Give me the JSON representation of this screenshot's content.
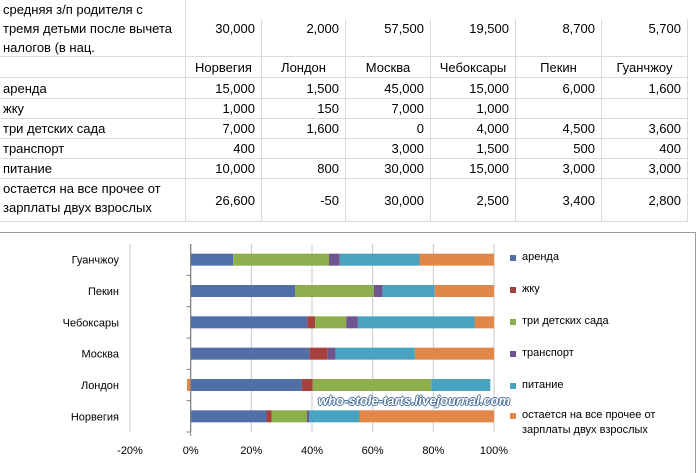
{
  "table": {
    "salary_label": "средняя з/п родителя с тремя детьми после вычета налогов (в нац.",
    "salaries": [
      "30,000",
      "2,000",
      "57,500",
      "19,500",
      "8,700",
      "5,700"
    ],
    "cities": [
      "Норвегия",
      "Лондон",
      "Москва",
      "Чебоксары",
      "Пекин",
      "Гуанчжоу"
    ],
    "rows": [
      {
        "label": "аренда",
        "values": [
          "15,000",
          "1,500",
          "45,000",
          "15,000",
          "6,000",
          "1,600"
        ]
      },
      {
        "label": "жку",
        "values": [
          "1,000",
          "150",
          "7,000",
          "1,000",
          "",
          ""
        ]
      },
      {
        "label": "три детских сада",
        "values": [
          "7,000",
          "1,600",
          "0",
          "4,000",
          "4,500",
          "3,600"
        ]
      },
      {
        "label": "транспорт",
        "values": [
          "400",
          "",
          "3,000",
          "1,500",
          "500",
          "400"
        ]
      },
      {
        "label": "питание",
        "values": [
          "10,000",
          "800",
          "30,000",
          "15,000",
          "3,000",
          "3,000"
        ]
      },
      {
        "label": "остается на все прочее от зарплаты двух взрослых",
        "values": [
          "26,600",
          "-50",
          "30,000",
          "2,500",
          "3,400",
          "2,800"
        ]
      }
    ]
  },
  "chart_data": {
    "type": "bar",
    "orientation": "horizontal",
    "stacked": "percent",
    "categories": [
      "Норвегия",
      "Лондон",
      "Москва",
      "Чебоксары",
      "Пекин",
      "Гуанчжоу"
    ],
    "series": [
      {
        "name": "аренда",
        "color": "#4F6FA6",
        "values": [
          15000,
          1500,
          45000,
          15000,
          6000,
          1600
        ]
      },
      {
        "name": "жку",
        "color": "#A8403E",
        "values": [
          1000,
          150,
          7000,
          1000,
          0,
          0
        ]
      },
      {
        "name": "три детских сада",
        "color": "#8DAE4D",
        "values": [
          7000,
          1600,
          0,
          4000,
          4500,
          3600
        ]
      },
      {
        "name": "транспорт",
        "color": "#6E5590",
        "values": [
          400,
          0,
          3000,
          1500,
          500,
          400
        ]
      },
      {
        "name": "питание",
        "color": "#4AA3BE",
        "values": [
          10000,
          800,
          30000,
          15000,
          3000,
          3000
        ]
      },
      {
        "name": "остается на все прочее от зарплаты двух взрослых",
        "color": "#E2874A",
        "values": [
          26600,
          -50,
          30000,
          2500,
          3400,
          2800
        ]
      }
    ],
    "x_ticks": [
      "-20%",
      "0%",
      "20%",
      "40%",
      "60%",
      "80%",
      "100%"
    ],
    "xlim": [
      -20,
      100
    ],
    "grid": true,
    "legend": "right",
    "watermark": "who-stole-tarts.livejournal.com"
  }
}
